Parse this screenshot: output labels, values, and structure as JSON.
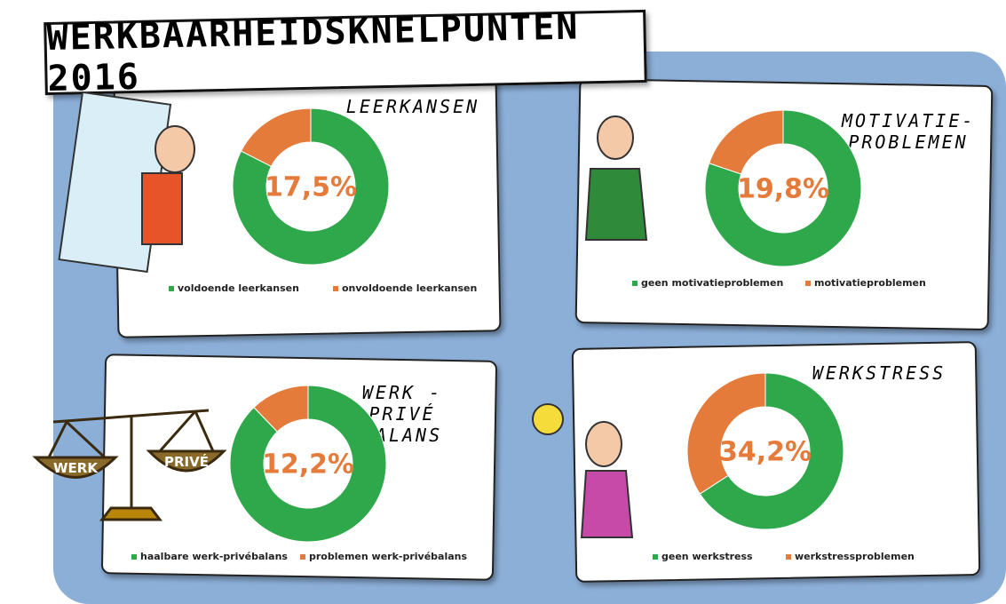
{
  "title": "WERKBAARHEIDSKNELPUNTEN 2016",
  "illustration_labels": [
    "WERK",
    "PRIVÉ"
  ],
  "chart_data": [
    {
      "type": "donut",
      "title": "LEERKANSEN",
      "categories": [
        "voldoende leerkansen",
        "onvoldoende leerkansen"
      ],
      "values": [
        82.5,
        17.5
      ],
      "value_labels": [
        null,
        "17,5%"
      ],
      "colors": [
        "#2ea84a",
        "#e57b3a"
      ]
    },
    {
      "type": "donut",
      "title": "MOTIVATIE- PROBLEMEN",
      "categories": [
        "geen motivatieproblemen",
        "motivatieproblemen"
      ],
      "values": [
        80.2,
        19.8
      ],
      "value_labels": [
        null,
        "19,8%"
      ],
      "colors": [
        "#2ea84a",
        "#e57b3a"
      ]
    },
    {
      "type": "donut",
      "title": "WERK - PRIVÉ BALANS",
      "categories": [
        "haalbare werk-privébalans",
        "problemen werk-privébalans"
      ],
      "values": [
        87.8,
        12.2
      ],
      "value_labels": [
        null,
        "12,2%"
      ],
      "colors": [
        "#2ea84a",
        "#e57b3a"
      ]
    },
    {
      "type": "donut",
      "title": "WERKSTRESS",
      "categories": [
        "geen werkstress",
        "werkstressproblemen"
      ],
      "values": [
        65.8,
        34.2
      ],
      "value_labels": [
        null,
        "34,2%"
      ],
      "colors": [
        "#2ea84a",
        "#e57b3a"
      ]
    }
  ]
}
